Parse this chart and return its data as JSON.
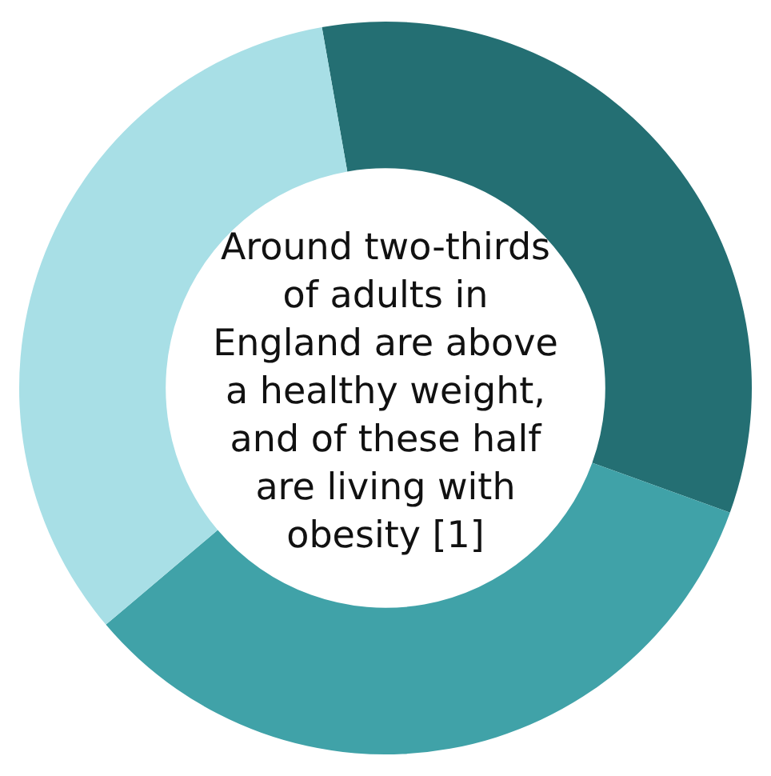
{
  "chart_data": {
    "type": "donut",
    "categories": [
      null,
      null,
      null
    ],
    "values": [
      33.3,
      33.3,
      33.4
    ],
    "colors": [
      "#246f73",
      "#40a2a8",
      "#a8dfe6"
    ],
    "legend": false,
    "annotations": [
      "Around two-thirds of adults in England are above a healthy weight, and of these half are living with obesity [1]"
    ]
  }
}
